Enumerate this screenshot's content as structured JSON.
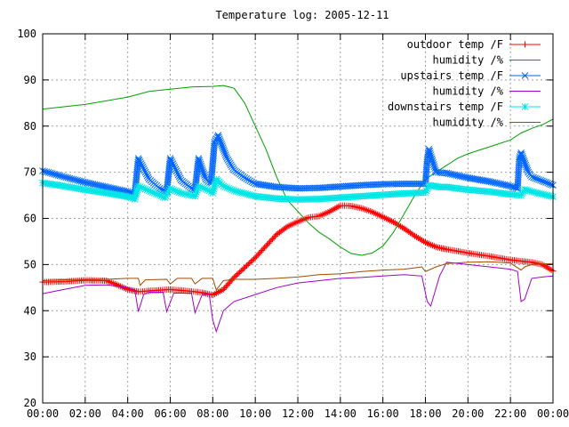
{
  "chart_data": {
    "type": "line",
    "title": "Temperature log: 2005-12-11",
    "xlabel": "",
    "ylabel": "",
    "xlim": [
      "00:00",
      "24:00"
    ],
    "ylim": [
      20,
      100
    ],
    "x_ticks": [
      "00:00",
      "02:00",
      "04:00",
      "06:00",
      "08:00",
      "10:00",
      "12:00",
      "14:00",
      "16:00",
      "18:00",
      "20:00",
      "22:00",
      "00:00"
    ],
    "y_ticks": [
      20,
      30,
      40,
      50,
      60,
      70,
      80,
      90,
      100
    ],
    "grid": true,
    "legend_position": "top-right",
    "series": [
      {
        "name": "outdoor temp /F",
        "color": "#ff0000",
        "marker": "plus",
        "points": [
          [
            "00:00",
            46.2
          ],
          [
            "01:00",
            46.3
          ],
          [
            "02:00",
            46.6
          ],
          [
            "03:00",
            46.5
          ],
          [
            "03:30",
            45.6
          ],
          [
            "04:00",
            44.6
          ],
          [
            "04:30",
            44.1
          ],
          [
            "05:00",
            44.3
          ],
          [
            "06:00",
            44.6
          ],
          [
            "07:00",
            44.2
          ],
          [
            "07:30",
            43.9
          ],
          [
            "08:00",
            43.4
          ],
          [
            "08:30",
            44.6
          ],
          [
            "09:00",
            47.2
          ],
          [
            "10:00",
            51.5
          ],
          [
            "11:00",
            56.5
          ],
          [
            "11:30",
            58.2
          ],
          [
            "12:00",
            59.3
          ],
          [
            "12:30",
            60.2
          ],
          [
            "13:00",
            60.5
          ],
          [
            "13:30",
            61.5
          ],
          [
            "14:00",
            62.8
          ],
          [
            "14:30",
            62.7
          ],
          [
            "15:00",
            62.2
          ],
          [
            "15:30",
            61.4
          ],
          [
            "16:00",
            60.3
          ],
          [
            "16:30",
            59.2
          ],
          [
            "17:00",
            57.8
          ],
          [
            "17:30",
            56.2
          ],
          [
            "18:00",
            54.8
          ],
          [
            "18:30",
            53.8
          ],
          [
            "19:00",
            53.3
          ],
          [
            "20:00",
            52.5
          ],
          [
            "21:00",
            51.8
          ],
          [
            "22:00",
            51.0
          ],
          [
            "23:00",
            50.5
          ],
          [
            "23:30",
            50.0
          ],
          [
            "24:00",
            48.6
          ]
        ]
      },
      {
        "name": "humidity /%",
        "color": "#00a000",
        "marker": "none",
        "points": [
          [
            "00:00",
            83.7
          ],
          [
            "02:00",
            84.7
          ],
          [
            "04:00",
            86.3
          ],
          [
            "05:00",
            87.5
          ],
          [
            "06:00",
            88.0
          ],
          [
            "07:00",
            88.5
          ],
          [
            "08:00",
            88.6
          ],
          [
            "08:30",
            88.8
          ],
          [
            "09:00",
            88.2
          ],
          [
            "09:30",
            85.0
          ],
          [
            "10:00",
            80.0
          ],
          [
            "10:30",
            75.0
          ],
          [
            "11:00",
            69.0
          ],
          [
            "11:30",
            64.0
          ],
          [
            "12:00",
            61.5
          ],
          [
            "12:30",
            59.0
          ],
          [
            "13:00",
            57.0
          ],
          [
            "13:30",
            55.5
          ],
          [
            "14:00",
            53.8
          ],
          [
            "14:30",
            52.4
          ],
          [
            "15:00",
            52.0
          ],
          [
            "15:30",
            52.5
          ],
          [
            "16:00",
            54.0
          ],
          [
            "16:30",
            57.0
          ],
          [
            "17:00",
            61.0
          ],
          [
            "17:30",
            65.0
          ],
          [
            "18:00",
            68.5
          ],
          [
            "18:30",
            70.0
          ],
          [
            "19:00",
            71.5
          ],
          [
            "19:30",
            73.0
          ],
          [
            "20:00",
            74.0
          ],
          [
            "21:00",
            75.5
          ],
          [
            "22:00",
            77.0
          ],
          [
            "22:30",
            78.5
          ],
          [
            "23:00",
            79.5
          ],
          [
            "23:30",
            80.3
          ],
          [
            "24:00",
            81.5
          ]
        ]
      },
      {
        "name": "upstairs temp /F",
        "color": "#0066ff",
        "marker": "x",
        "points": [
          [
            "00:00",
            70.3
          ],
          [
            "01:00",
            69.0
          ],
          [
            "02:00",
            67.8
          ],
          [
            "03:00",
            66.8
          ],
          [
            "04:00",
            65.8
          ],
          [
            "04:20",
            65.3
          ],
          [
            "04:30",
            73.0
          ],
          [
            "05:00",
            68.5
          ],
          [
            "05:30",
            66.5
          ],
          [
            "05:50",
            65.8
          ],
          [
            "06:00",
            73.0
          ],
          [
            "06:30",
            68.3
          ],
          [
            "07:00",
            66.5
          ],
          [
            "07:10",
            66.2
          ],
          [
            "07:20",
            73.0
          ],
          [
            "07:40",
            68.5
          ],
          [
            "07:55",
            67.5
          ],
          [
            "08:05",
            76.5
          ],
          [
            "08:15",
            78.0
          ],
          [
            "08:40",
            73.0
          ],
          [
            "09:00",
            70.5
          ],
          [
            "09:30",
            68.8
          ],
          [
            "10:00",
            67.5
          ],
          [
            "11:00",
            66.8
          ],
          [
            "12:00",
            66.5
          ],
          [
            "13:00",
            66.6
          ],
          [
            "14:00",
            66.9
          ],
          [
            "15:00",
            67.2
          ],
          [
            "16:00",
            67.4
          ],
          [
            "17:00",
            67.5
          ],
          [
            "18:00",
            67.5
          ],
          [
            "18:05",
            72.5
          ],
          [
            "18:10",
            75.0
          ],
          [
            "18:30",
            70.0
          ],
          [
            "19:00",
            69.8
          ],
          [
            "20:00",
            68.8
          ],
          [
            "21:00",
            68.0
          ],
          [
            "22:00",
            67.0
          ],
          [
            "22:20",
            66.5
          ],
          [
            "22:25",
            73.0
          ],
          [
            "22:30",
            74.2
          ],
          [
            "22:50",
            70.0
          ],
          [
            "23:00",
            69.0
          ],
          [
            "24:00",
            67.2
          ]
        ]
      },
      {
        "name": "humidity /%",
        "color": "#a000c8",
        "marker": "none",
        "points": [
          [
            "00:00",
            43.7
          ],
          [
            "01:00",
            44.6
          ],
          [
            "02:00",
            45.5
          ],
          [
            "03:00",
            45.6
          ],
          [
            "04:00",
            45.0
          ],
          [
            "04:20",
            44.5
          ],
          [
            "04:30",
            39.8
          ],
          [
            "04:45",
            43.5
          ],
          [
            "05:00",
            44.0
          ],
          [
            "05:40",
            44.0
          ],
          [
            "05:50",
            39.8
          ],
          [
            "06:10",
            43.8
          ],
          [
            "07:00",
            43.8
          ],
          [
            "07:10",
            39.5
          ],
          [
            "07:30",
            43.5
          ],
          [
            "07:50",
            43.5
          ],
          [
            "08:00",
            38.0
          ],
          [
            "08:10",
            35.5
          ],
          [
            "08:30",
            40.0
          ],
          [
            "09:00",
            42.0
          ],
          [
            "10:00",
            43.5
          ],
          [
            "11:00",
            45.0
          ],
          [
            "12:00",
            46.0
          ],
          [
            "13:00",
            46.5
          ],
          [
            "14:00",
            47.0
          ],
          [
            "15:00",
            47.2
          ],
          [
            "16:00",
            47.5
          ],
          [
            "17:00",
            47.8
          ],
          [
            "17:50",
            47.5
          ],
          [
            "18:05",
            42.0
          ],
          [
            "18:15",
            41.0
          ],
          [
            "18:40",
            47.5
          ],
          [
            "19:00",
            50.5
          ],
          [
            "20:00",
            50.0
          ],
          [
            "21:00",
            49.5
          ],
          [
            "22:00",
            49.0
          ],
          [
            "22:20",
            48.5
          ],
          [
            "22:30",
            42.0
          ],
          [
            "22:40",
            42.5
          ],
          [
            "23:00",
            47.0
          ],
          [
            "23:30",
            47.3
          ],
          [
            "24:00",
            47.5
          ]
        ]
      },
      {
        "name": "downstairs temp /F",
        "color": "#00e6e6",
        "marker": "star",
        "points": [
          [
            "00:00",
            67.7
          ],
          [
            "01:00",
            67.0
          ],
          [
            "02:00",
            66.2
          ],
          [
            "03:00",
            65.5
          ],
          [
            "04:00",
            64.7
          ],
          [
            "04:20",
            64.2
          ],
          [
            "04:30",
            67.0
          ],
          [
            "05:00",
            66.0
          ],
          [
            "05:45",
            64.5
          ],
          [
            "06:00",
            66.5
          ],
          [
            "06:30",
            65.5
          ],
          [
            "07:10",
            64.8
          ],
          [
            "07:20",
            67.0
          ],
          [
            "07:50",
            66.0
          ],
          [
            "08:00",
            65.5
          ],
          [
            "08:10",
            68.5
          ],
          [
            "08:30",
            67.0
          ],
          [
            "09:00",
            66.0
          ],
          [
            "10:00",
            64.8
          ],
          [
            "11:00",
            64.3
          ],
          [
            "12:00",
            64.1
          ],
          [
            "13:00",
            64.2
          ],
          [
            "14:00",
            64.5
          ],
          [
            "15:00",
            64.8
          ],
          [
            "16:00",
            65.1
          ],
          [
            "17:00",
            65.4
          ],
          [
            "18:00",
            65.6
          ],
          [
            "18:10",
            67.2
          ],
          [
            "18:40",
            66.8
          ],
          [
            "19:00",
            66.8
          ],
          [
            "20:00",
            66.2
          ],
          [
            "21:00",
            65.8
          ],
          [
            "22:00",
            65.2
          ],
          [
            "22:30",
            65.0
          ],
          [
            "22:40",
            66.3
          ],
          [
            "23:00",
            65.8
          ],
          [
            "24:00",
            64.7
          ]
        ]
      },
      {
        "name": "humidity /%",
        "color": "#a04a00",
        "marker": "none",
        "points": [
          [
            "00:00",
            46.5
          ],
          [
            "01:00",
            46.7
          ],
          [
            "02:00",
            46.8
          ],
          [
            "03:00",
            46.8
          ],
          [
            "04:00",
            47.0
          ],
          [
            "04:30",
            47.0
          ],
          [
            "04:35",
            45.5
          ],
          [
            "04:50",
            46.7
          ],
          [
            "05:50",
            46.8
          ],
          [
            "06:00",
            45.8
          ],
          [
            "06:20",
            47.0
          ],
          [
            "07:00",
            47.0
          ],
          [
            "07:10",
            45.8
          ],
          [
            "07:30",
            47.0
          ],
          [
            "08:00",
            47.0
          ],
          [
            "08:10",
            44.5
          ],
          [
            "08:30",
            46.5
          ],
          [
            "09:00",
            46.8
          ],
          [
            "10:00",
            46.8
          ],
          [
            "11:00",
            47.0
          ],
          [
            "12:00",
            47.3
          ],
          [
            "13:00",
            47.8
          ],
          [
            "14:00",
            48.0
          ],
          [
            "15:00",
            48.5
          ],
          [
            "16:00",
            48.8
          ],
          [
            "17:00",
            49.0
          ],
          [
            "17:50",
            49.5
          ],
          [
            "18:00",
            48.5
          ],
          [
            "18:30",
            49.5
          ],
          [
            "19:00",
            50.2
          ],
          [
            "20:00",
            50.5
          ],
          [
            "21:00",
            50.6
          ],
          [
            "22:00",
            50.3
          ],
          [
            "22:30",
            48.8
          ],
          [
            "22:40",
            49.5
          ],
          [
            "23:00",
            50.0
          ],
          [
            "24:00",
            50.2
          ]
        ]
      }
    ]
  }
}
